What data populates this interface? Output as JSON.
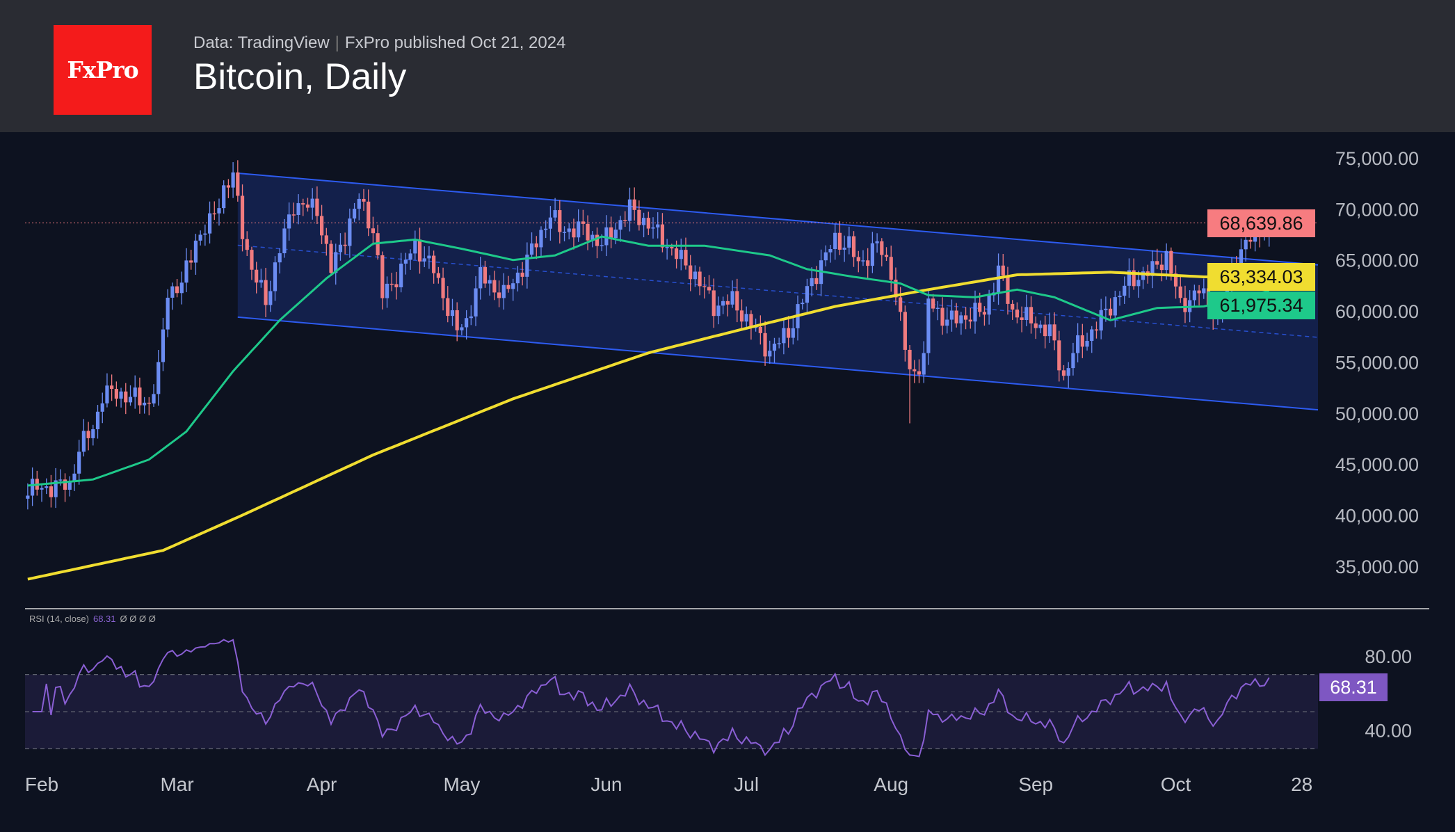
{
  "header": {
    "logo": "FxPro",
    "source": "Data: TradingView",
    "published": "FxPro published Oct 21, 2024",
    "title": "Bitcoin, Daily"
  },
  "colors": {
    "up": "#6b8cf2",
    "down": "#f07b7f",
    "sma200": "#f0dd30",
    "sma50": "#1ec98a",
    "rsi": "#8a5fd4",
    "channel": "#2d5bf0",
    "last": "#f77c80"
  },
  "price_tags": {
    "last": "68,639.86",
    "sma200": "63,334.03",
    "sma50": "61,975.34"
  },
  "rsi": {
    "legend": "RSI (14, close)",
    "value": "68.31",
    "extra": "Ø Ø Ø Ø",
    "ticks": [
      "80.00",
      "40.00"
    ]
  },
  "chart_data": {
    "type": "candlestick",
    "title": "Bitcoin, Daily",
    "x_ticks": [
      "Feb",
      "Mar",
      "Apr",
      "May",
      "Jun",
      "Jul",
      "Aug",
      "Sep",
      "Oct",
      "28"
    ],
    "x_tick_days": [
      0,
      29,
      60,
      90,
      121,
      151,
      182,
      213,
      243,
      270
    ],
    "y_ticks": [
      "75,000.00",
      "70,000.00",
      "65,000.00",
      "60,000.00",
      "55,000.00",
      "50,000.00",
      "45,000.00",
      "40,000.00",
      "35,000.00"
    ],
    "y_tick_values": [
      75000,
      70000,
      65000,
      60000,
      55000,
      50000,
      45000,
      40000,
      35000
    ],
    "ylim": [
      33000,
      77000
    ],
    "close_anchors_day_price": [
      [
        -3,
        42500
      ],
      [
        6,
        43000
      ],
      [
        8,
        46500
      ],
      [
        11,
        48500
      ],
      [
        13,
        51800
      ],
      [
        16,
        52000
      ],
      [
        23,
        51000
      ],
      [
        25,
        54000
      ],
      [
        27,
        62000
      ],
      [
        30,
        62500
      ],
      [
        33,
        67000
      ],
      [
        36,
        68500
      ],
      [
        39,
        72000
      ],
      [
        41,
        73100
      ],
      [
        43,
        68000
      ],
      [
        45,
        64000
      ],
      [
        48,
        61000
      ],
      [
        51,
        66000
      ],
      [
        54,
        70500
      ],
      [
        59,
        70000
      ],
      [
        62,
        64000
      ],
      [
        68,
        71000
      ],
      [
        71,
        68000
      ],
      [
        73,
        61500
      ],
      [
        77,
        64000
      ],
      [
        80,
        66500
      ],
      [
        84,
        64000
      ],
      [
        89,
        58000
      ],
      [
        91,
        59000
      ],
      [
        94,
        63500
      ],
      [
        99,
        61500
      ],
      [
        104,
        65000
      ],
      [
        109,
        69500
      ],
      [
        111,
        68000
      ],
      [
        116,
        68000
      ],
      [
        120,
        66500
      ],
      [
        126,
        70000
      ],
      [
        130,
        68500
      ],
      [
        134,
        66500
      ],
      [
        140,
        63500
      ],
      [
        144,
        60500
      ],
      [
        148,
        61000
      ],
      [
        153,
        58000
      ],
      [
        156,
        56000
      ],
      [
        160,
        58000
      ],
      [
        165,
        63000
      ],
      [
        170,
        67000
      ],
      [
        173,
        66500
      ],
      [
        175,
        64500
      ],
      [
        179,
        66500
      ],
      [
        182,
        64000
      ],
      [
        186,
        54000
      ],
      [
        189,
        55000
      ],
      [
        190,
        61000
      ],
      [
        194,
        59000
      ],
      [
        198,
        59500
      ],
      [
        202,
        60000
      ],
      [
        205,
        64000
      ],
      [
        208,
        60000
      ],
      [
        212,
        59000
      ],
      [
        216,
        58000
      ],
      [
        219,
        53500
      ],
      [
        221,
        56000
      ],
      [
        225,
        58000
      ],
      [
        229,
        60500
      ],
      [
        233,
        63000
      ],
      [
        238,
        64000
      ],
      [
        241,
        65500
      ],
      [
        244,
        60500
      ],
      [
        248,
        62000
      ],
      [
        252,
        59500
      ],
      [
        254,
        62500
      ],
      [
        257,
        66000
      ],
      [
        260,
        67500
      ],
      [
        263,
        68640
      ]
    ],
    "sma200_anchors": [
      [
        -3,
        33730
      ],
      [
        26,
        36550
      ],
      [
        43,
        40000
      ],
      [
        71,
        45900
      ],
      [
        101,
        51400
      ],
      [
        130,
        55900
      ],
      [
        150,
        58200
      ],
      [
        170,
        60450
      ],
      [
        190,
        62100
      ],
      [
        209,
        63550
      ],
      [
        229,
        63800
      ],
      [
        249,
        63350
      ],
      [
        263,
        63334
      ]
    ],
    "sma50_anchors": [
      [
        -3,
        42900
      ],
      [
        11,
        43500
      ],
      [
        23,
        45450
      ],
      [
        31,
        48200
      ],
      [
        41,
        54100
      ],
      [
        51,
        59100
      ],
      [
        61,
        63200
      ],
      [
        71,
        66600
      ],
      [
        80,
        67000
      ],
      [
        90,
        66100
      ],
      [
        101,
        65000
      ],
      [
        110,
        65450
      ],
      [
        120,
        67300
      ],
      [
        130,
        66400
      ],
      [
        142,
        66400
      ],
      [
        156,
        65450
      ],
      [
        164,
        64100
      ],
      [
        174,
        63350
      ],
      [
        184,
        62700
      ],
      [
        190,
        61550
      ],
      [
        200,
        61350
      ],
      [
        209,
        62100
      ],
      [
        217,
        61350
      ],
      [
        229,
        59100
      ],
      [
        239,
        60300
      ],
      [
        249,
        60450
      ],
      [
        263,
        61975
      ]
    ],
    "channel": {
      "upper": [
        [
          42,
          73500
        ],
        [
          274,
          64500
        ]
      ],
      "lower": [
        [
          42,
          59400
        ],
        [
          274,
          50300
        ]
      ]
    },
    "last_price": 68639.86,
    "rsi_levels": [
      70,
      50,
      30
    ],
    "rsi_last": 68.31
  }
}
